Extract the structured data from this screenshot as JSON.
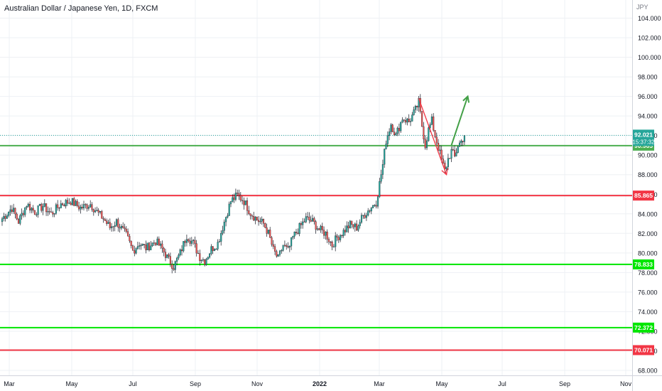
{
  "header": {
    "title": "Australian Dollar / Japanese Yen, 1D, FXCM"
  },
  "axis": {
    "currency": "JPY"
  },
  "price_badges": {
    "last_price": "92.021",
    "countdown": "15:37:32"
  },
  "colors": {
    "up": "#26a69a",
    "down": "#ef5350",
    "candle_border": "#000000",
    "grid": "#eef0f4",
    "red_line": "#f23645",
    "green_line": "#4caf50",
    "bright_green": "#00e600",
    "trend_red": "#f23645",
    "arrow_green": "#43a047",
    "last_price": "#26a69a"
  },
  "chart_data": {
    "type": "candlestick",
    "title": "Australian Dollar / Japanese Yen, 1D, FXCM",
    "xlabel": "",
    "ylabel": "JPY",
    "ylim": [
      67,
      105
    ],
    "grid": true,
    "x_ticks": [
      "Mar",
      "May",
      "Jul",
      "Sep",
      "Nov",
      "2022",
      "Mar",
      "May",
      "Jul",
      "Sep",
      "Nov"
    ],
    "y_ticks": [
      "104.000",
      "102.000",
      "100.000",
      "98.000",
      "96.000",
      "94.000",
      "92.000",
      "90.000",
      "88.000",
      "86.000",
      "84.000",
      "82.000",
      "80.000",
      "78.000",
      "76.000",
      "74.000",
      "72.000",
      "70.000",
      "68.000"
    ],
    "series": [
      {
        "name": "AUDJPY",
        "anchor_closes": [
          [
            0,
            83.5
          ],
          [
            6,
            84.6
          ],
          [
            10,
            83.2
          ],
          [
            15,
            85.0
          ],
          [
            20,
            84.2
          ],
          [
            25,
            84.8
          ],
          [
            30,
            84.0
          ],
          [
            36,
            85.0
          ],
          [
            42,
            85.3
          ],
          [
            48,
            84.6
          ],
          [
            54,
            85.0
          ],
          [
            58,
            84.2
          ],
          [
            62,
            83.5
          ],
          [
            66,
            82.6
          ],
          [
            70,
            83.2
          ],
          [
            76,
            81.8
          ],
          [
            80,
            80.2
          ],
          [
            84,
            81.0
          ],
          [
            88,
            80.5
          ],
          [
            94,
            81.2
          ],
          [
            98,
            80.4
          ],
          [
            102,
            79.3
          ],
          [
            105,
            78.6
          ],
          [
            109,
            80.0
          ],
          [
            113,
            81.8
          ],
          [
            117,
            81.0
          ],
          [
            121,
            79.6
          ],
          [
            124,
            79.2
          ],
          [
            128,
            80.4
          ],
          [
            132,
            81.0
          ],
          [
            136,
            83.2
          ],
          [
            140,
            85.3
          ],
          [
            144,
            85.9
          ],
          [
            148,
            85.3
          ],
          [
            152,
            84.1
          ],
          [
            156,
            83.4
          ],
          [
            160,
            83.0
          ],
          [
            163,
            82.0
          ],
          [
            166,
            80.3
          ],
          [
            169,
            79.4
          ],
          [
            172,
            80.8
          ],
          [
            175,
            80.2
          ],
          [
            178,
            81.6
          ],
          [
            182,
            82.6
          ],
          [
            186,
            83.5
          ],
          [
            190,
            83.2
          ],
          [
            194,
            82.4
          ],
          [
            198,
            82.0
          ],
          [
            202,
            80.8
          ],
          [
            205,
            81.6
          ],
          [
            209,
            82.2
          ],
          [
            213,
            82.9
          ],
          [
            217,
            82.6
          ],
          [
            221,
            83.8
          ],
          [
            225,
            84.5
          ],
          [
            229,
            85.2
          ],
          [
            233,
            89.0
          ],
          [
            235,
            91.5
          ],
          [
            238,
            93.2
          ],
          [
            241,
            92.0
          ],
          [
            245,
            93.8
          ],
          [
            249,
            93.4
          ],
          [
            253,
            94.6
          ],
          [
            255,
            95.4
          ],
          [
            257,
            93.0
          ],
          [
            259,
            91.0
          ],
          [
            261,
            92.6
          ],
          [
            263,
            93.5
          ],
          [
            265,
            92.0
          ],
          [
            267,
            90.8
          ],
          [
            269,
            89.5
          ],
          [
            271,
            88.4
          ],
          [
            273,
            89.6
          ],
          [
            275,
            90.4
          ],
          [
            277,
            89.8
          ],
          [
            279,
            91.0
          ],
          [
            281,
            91.4
          ],
          [
            283,
            92.0
          ]
        ]
      }
    ],
    "horizontal_levels": [
      {
        "value": 90.965,
        "label": "90.965",
        "color": "#4caf50"
      },
      {
        "value": 85.865,
        "label": "85.865",
        "color": "#f23645"
      },
      {
        "value": 78.833,
        "label": "78.833",
        "color": "#00e600"
      },
      {
        "value": 72.372,
        "label": "72.372",
        "color": "#00e600"
      },
      {
        "value": 70.071,
        "label": "70.071",
        "color": "#f23645"
      }
    ],
    "annotations": [
      {
        "kind": "trend-line",
        "from": [
          255,
          95.8
        ],
        "to": [
          272,
          88.0
        ],
        "color": "#f23645",
        "arrow": true
      },
      {
        "kind": "arrow",
        "from": [
          275,
          91.0
        ],
        "to": [
          285,
          96.0
        ],
        "color": "#43a047"
      }
    ],
    "last_price": 92.021
  }
}
